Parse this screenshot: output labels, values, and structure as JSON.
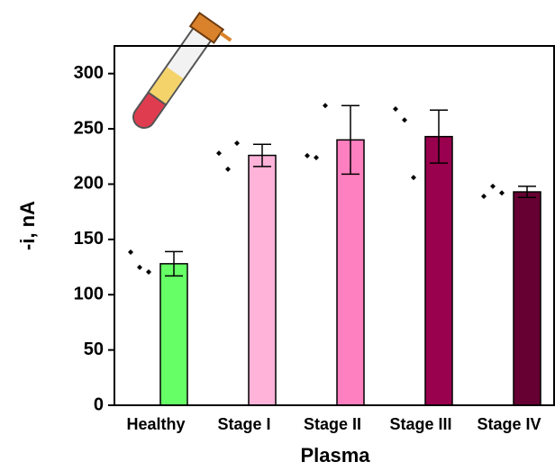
{
  "chart_data": {
    "type": "bar",
    "categories": [
      "Healthy",
      "Stage I",
      "Stage II",
      "Stage III",
      "Stage IV"
    ],
    "values": [
      128,
      226,
      240,
      243,
      193
    ],
    "errors": [
      11,
      10,
      31,
      24,
      5
    ],
    "points": [
      [
        138.5,
        124.7,
        120.6
      ],
      [
        228,
        213.5,
        237
      ],
      [
        225.7,
        224,
        271
      ],
      [
        268,
        258,
        206
      ],
      [
        189,
        198,
        192
      ]
    ],
    "colors": [
      "#66ff66",
      "#ffb3d9",
      "#ff80c0",
      "#99004d",
      "#660033"
    ],
    "y_label": "-i, nA",
    "x_label": "Plasma",
    "ylim": [
      0,
      325
    ],
    "yticks": [
      0,
      50,
      100,
      150,
      200,
      250,
      300
    ]
  }
}
